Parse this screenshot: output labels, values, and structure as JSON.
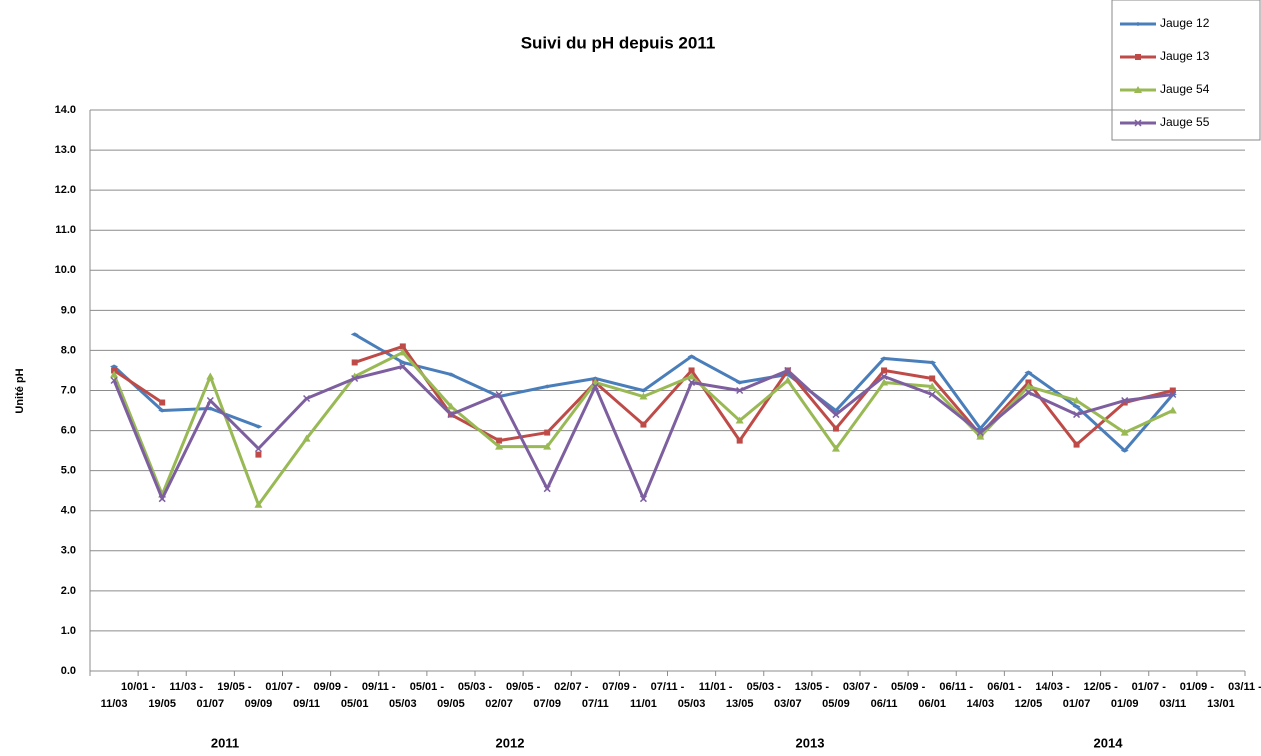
{
  "chart_data": {
    "type": "line",
    "title": "Suivi du pH depuis 2011",
    "y_label": "Unité pH",
    "categories": [
      "10/01 - 11/03",
      "11/03 - 19/05",
      "19/05 - 01/07",
      "01/07 - 09/09",
      "09/09 - 09/11",
      "09/11 - 05/01",
      "05/01 - 05/03",
      "05/03 - 09/05",
      "09/05 - 02/07",
      "02/07 - 07/09",
      "07/09 - 07/11",
      "07/11 - 11/01",
      "11/01 - 05/03",
      "05/03 - 13/05",
      "13/05 - 03/07",
      "03/07 - 05/09",
      "05/09 - 06/11",
      "06/11 - 06/01",
      "06/01 - 14/03",
      "14/03 - 12/05",
      "12/05 - 01/07",
      "01/07 - 01/09",
      "01/09 - 03/11",
      "03/11 - 13/01"
    ],
    "year_labels": [
      "2011",
      "2012",
      "2013",
      "2014"
    ],
    "series": [
      {
        "name": "Jauge 12",
        "color": "#4a7ebb",
        "values": [
          7.6,
          6.5,
          6.55,
          6.1,
          null,
          8.4,
          7.7,
          7.4,
          6.85,
          7.1,
          7.3,
          7.0,
          7.85,
          7.2,
          7.4,
          6.5,
          7.8,
          7.7,
          6.05,
          7.45,
          6.6,
          5.5,
          6.9,
          null
        ]
      },
      {
        "name": "Jauge 13",
        "color": "#be4b48",
        "values": [
          7.5,
          6.7,
          null,
          5.4,
          null,
          7.7,
          8.1,
          6.4,
          5.75,
          5.95,
          7.2,
          6.15,
          7.5,
          5.75,
          7.5,
          6.05,
          7.5,
          7.3,
          5.9,
          7.2,
          5.65,
          6.7,
          7.0,
          null
        ]
      },
      {
        "name": "Jauge 54",
        "color": "#98b954",
        "values": [
          7.4,
          4.4,
          7.35,
          4.15,
          5.8,
          7.35,
          7.95,
          6.6,
          5.6,
          5.6,
          7.2,
          6.85,
          7.35,
          6.25,
          7.25,
          5.55,
          7.2,
          7.1,
          5.85,
          7.1,
          6.75,
          5.95,
          6.5,
          null
        ]
      },
      {
        "name": "Jauge 55",
        "color": "#7d5fa0",
        "values": [
          7.25,
          4.3,
          6.75,
          5.55,
          6.8,
          7.3,
          7.6,
          6.4,
          6.9,
          4.55,
          7.1,
          4.3,
          7.2,
          7.0,
          7.5,
          6.4,
          7.35,
          6.9,
          5.95,
          6.95,
          6.4,
          6.75,
          6.9,
          null
        ]
      }
    ],
    "ylim": [
      0,
      14
    ],
    "yticks": [
      {
        "value": 0,
        "label": "0.0"
      },
      {
        "value": 1,
        "label": "1.0"
      },
      {
        "value": 2,
        "label": "2.0"
      },
      {
        "value": 3,
        "label": "3.0"
      },
      {
        "value": 4,
        "label": "4.0"
      },
      {
        "value": 5,
        "label": "5.0"
      },
      {
        "value": 6,
        "label": "6.0"
      },
      {
        "value": 7,
        "label": "7.0"
      },
      {
        "value": 8,
        "label": "8.0"
      },
      {
        "value": 9,
        "label": "9.0"
      },
      {
        "value": 10,
        "label": "10.0"
      },
      {
        "value": 11,
        "label": "11.0"
      },
      {
        "value": 12,
        "label": "12.0"
      },
      {
        "value": 13,
        "label": "13.0"
      },
      {
        "value": 14,
        "label": "14.0"
      }
    ],
    "grid": true
  }
}
